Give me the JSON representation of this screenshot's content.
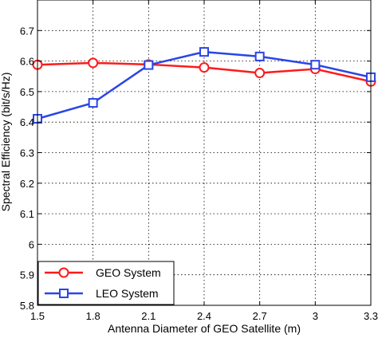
{
  "chart_data": {
    "type": "line",
    "title": "",
    "xlabel": "Antenna Diameter of GEO Satellite (m)",
    "ylabel": "Spectral Efficiency (bit/s/Hz)",
    "xlim": [
      1.5,
      3.3
    ],
    "ylim": [
      5.8,
      6.8
    ],
    "x": [
      1.5,
      1.8,
      2.1,
      2.4,
      2.7,
      3.0,
      3.3
    ],
    "x_tick_labels": [
      "1.5",
      "1.8",
      "2.1",
      "2.4",
      "2.7",
      "3",
      "3.3"
    ],
    "y_ticks": [
      5.8,
      5.9,
      6.0,
      6.1,
      6.2,
      6.3,
      6.4,
      6.5,
      6.6,
      6.7
    ],
    "y_tick_labels": [
      "5.8",
      "5.9",
      "6",
      "6.1",
      "6.2",
      "6.3",
      "6.4",
      "6.5",
      "6.6",
      "6.7"
    ],
    "grid": true,
    "legend_position": "bottom-left",
    "series": [
      {
        "name": "GEO System",
        "color": "#ff1a1a",
        "marker": "circle",
        "values": [
          6.588,
          6.594,
          6.589,
          6.579,
          6.561,
          6.574,
          6.533
        ]
      },
      {
        "name": "LEO System",
        "color": "#2a45e6",
        "marker": "square",
        "values": [
          6.411,
          6.463,
          6.587,
          6.63,
          6.615,
          6.588,
          6.547
        ]
      }
    ]
  }
}
